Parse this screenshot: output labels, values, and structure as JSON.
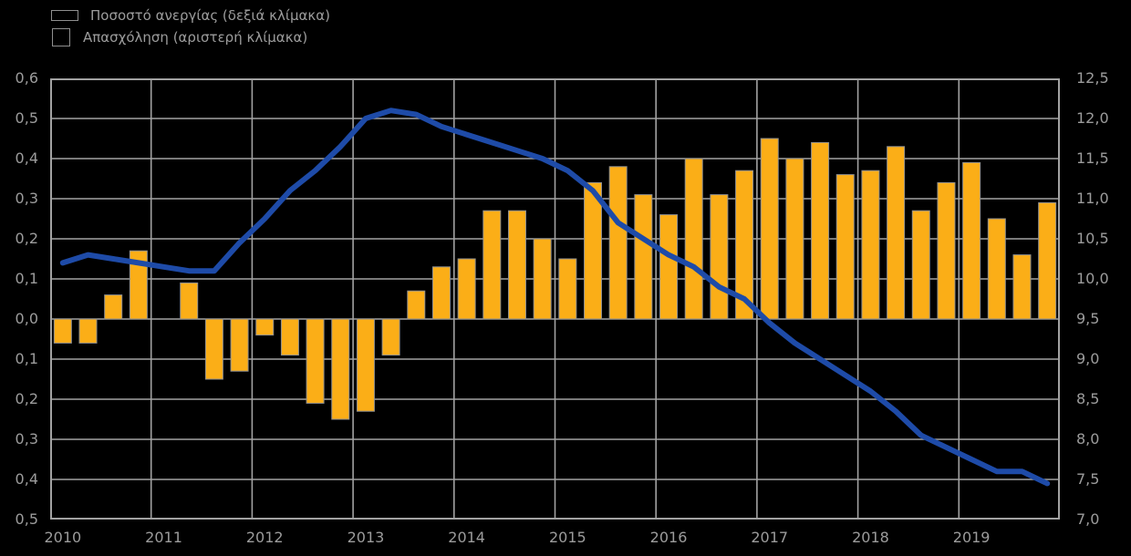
{
  "legend": {
    "items": [
      {
        "label": "Ποσοστό ανεργίας (δεξιά κλίμακα)",
        "swatch": "line",
        "color": "#1E4BA8"
      },
      {
        "label": "Απασχόληση (αριστερή κλίμακα)",
        "swatch": "square",
        "color": "#FBAE17"
      }
    ]
  },
  "chart_data": {
    "type": "bar",
    "subtype": "combo-bar-line-dual-axis",
    "title": "",
    "xlabel": "",
    "ylabel_left": "Απασχόληση (αριστερή κλίμακα)",
    "ylabel_right": "Ποσοστό ανεργίας (δεξιά κλίμακα)",
    "grid": true,
    "background": "#000000",
    "gridline_color": "#a2a2a2",
    "categories": [
      "2010Q1",
      "2010Q2",
      "2010Q3",
      "2010Q4",
      "2011Q1",
      "2011Q2",
      "2011Q3",
      "2011Q4",
      "2012Q1",
      "2012Q2",
      "2012Q3",
      "2012Q4",
      "2013Q1",
      "2013Q2",
      "2013Q3",
      "2013Q4",
      "2014Q1",
      "2014Q2",
      "2014Q3",
      "2014Q4",
      "2015Q1",
      "2015Q2",
      "2015Q3",
      "2015Q4",
      "2016Q1",
      "2016Q2",
      "2016Q3",
      "2016Q4",
      "2017Q1",
      "2017Q2",
      "2017Q3",
      "2017Q4",
      "2018Q1",
      "2018Q2",
      "2018Q3",
      "2018Q4",
      "2019Q1",
      "2019Q2",
      "2019Q3",
      "2019Q4"
    ],
    "series": [
      {
        "name": "Απασχόληση (αριστερή κλίμακα)",
        "type": "bar",
        "axis": "left",
        "color": "#FBAE17",
        "values": [
          -0.06,
          -0.06,
          0.06,
          0.17,
          0.0,
          0.09,
          -0.15,
          -0.13,
          -0.04,
          -0.09,
          -0.21,
          -0.25,
          -0.23,
          -0.09,
          0.07,
          0.13,
          0.15,
          0.27,
          0.27,
          0.2,
          0.15,
          0.34,
          0.38,
          0.31,
          0.26,
          0.4,
          0.31,
          0.37,
          0.45,
          0.4,
          0.44,
          0.36,
          0.37,
          0.43,
          0.27,
          0.34,
          0.39,
          0.25,
          0.16,
          0.29
        ]
      },
      {
        "name": "Ποσοστό ανεργίας (δεξιά κλίμακα)",
        "type": "line",
        "axis": "right",
        "color": "#1E4BA8",
        "values": [
          10.2,
          10.3,
          10.25,
          10.2,
          10.15,
          10.1,
          10.1,
          10.45,
          10.75,
          11.1,
          11.35,
          11.65,
          12.0,
          12.1,
          12.05,
          11.9,
          11.8,
          11.7,
          11.6,
          11.5,
          11.35,
          11.1,
          10.7,
          10.5,
          10.3,
          10.15,
          9.9,
          9.75,
          9.45,
          9.2,
          9.0,
          8.8,
          8.6,
          8.35,
          8.05,
          7.9,
          7.75,
          7.6,
          7.6,
          7.45
        ]
      }
    ],
    "left_axis": {
      "min": -0.5,
      "max": 0.6,
      "step": 0.1,
      "tick_labels": [
        "0,6",
        "0,5",
        "0,4",
        "0,3",
        "0,2",
        "0,1",
        "0,0",
        "0,1",
        "0,2",
        "0,3",
        "0,4",
        "0,5"
      ]
    },
    "right_axis": {
      "min": 7.0,
      "max": 12.5,
      "step": 0.5,
      "tick_labels": [
        "12,5",
        "12,0",
        "11,5",
        "11,0",
        "10,5",
        "10,0",
        "9,5",
        "9,0",
        "8,5",
        "8,0",
        "7,5",
        "7,0"
      ]
    },
    "x_axis": {
      "year_labels": [
        "2010",
        "2011",
        "2012",
        "2013",
        "2014",
        "2015",
        "2016",
        "2017",
        "2018",
        "2019"
      ]
    }
  }
}
